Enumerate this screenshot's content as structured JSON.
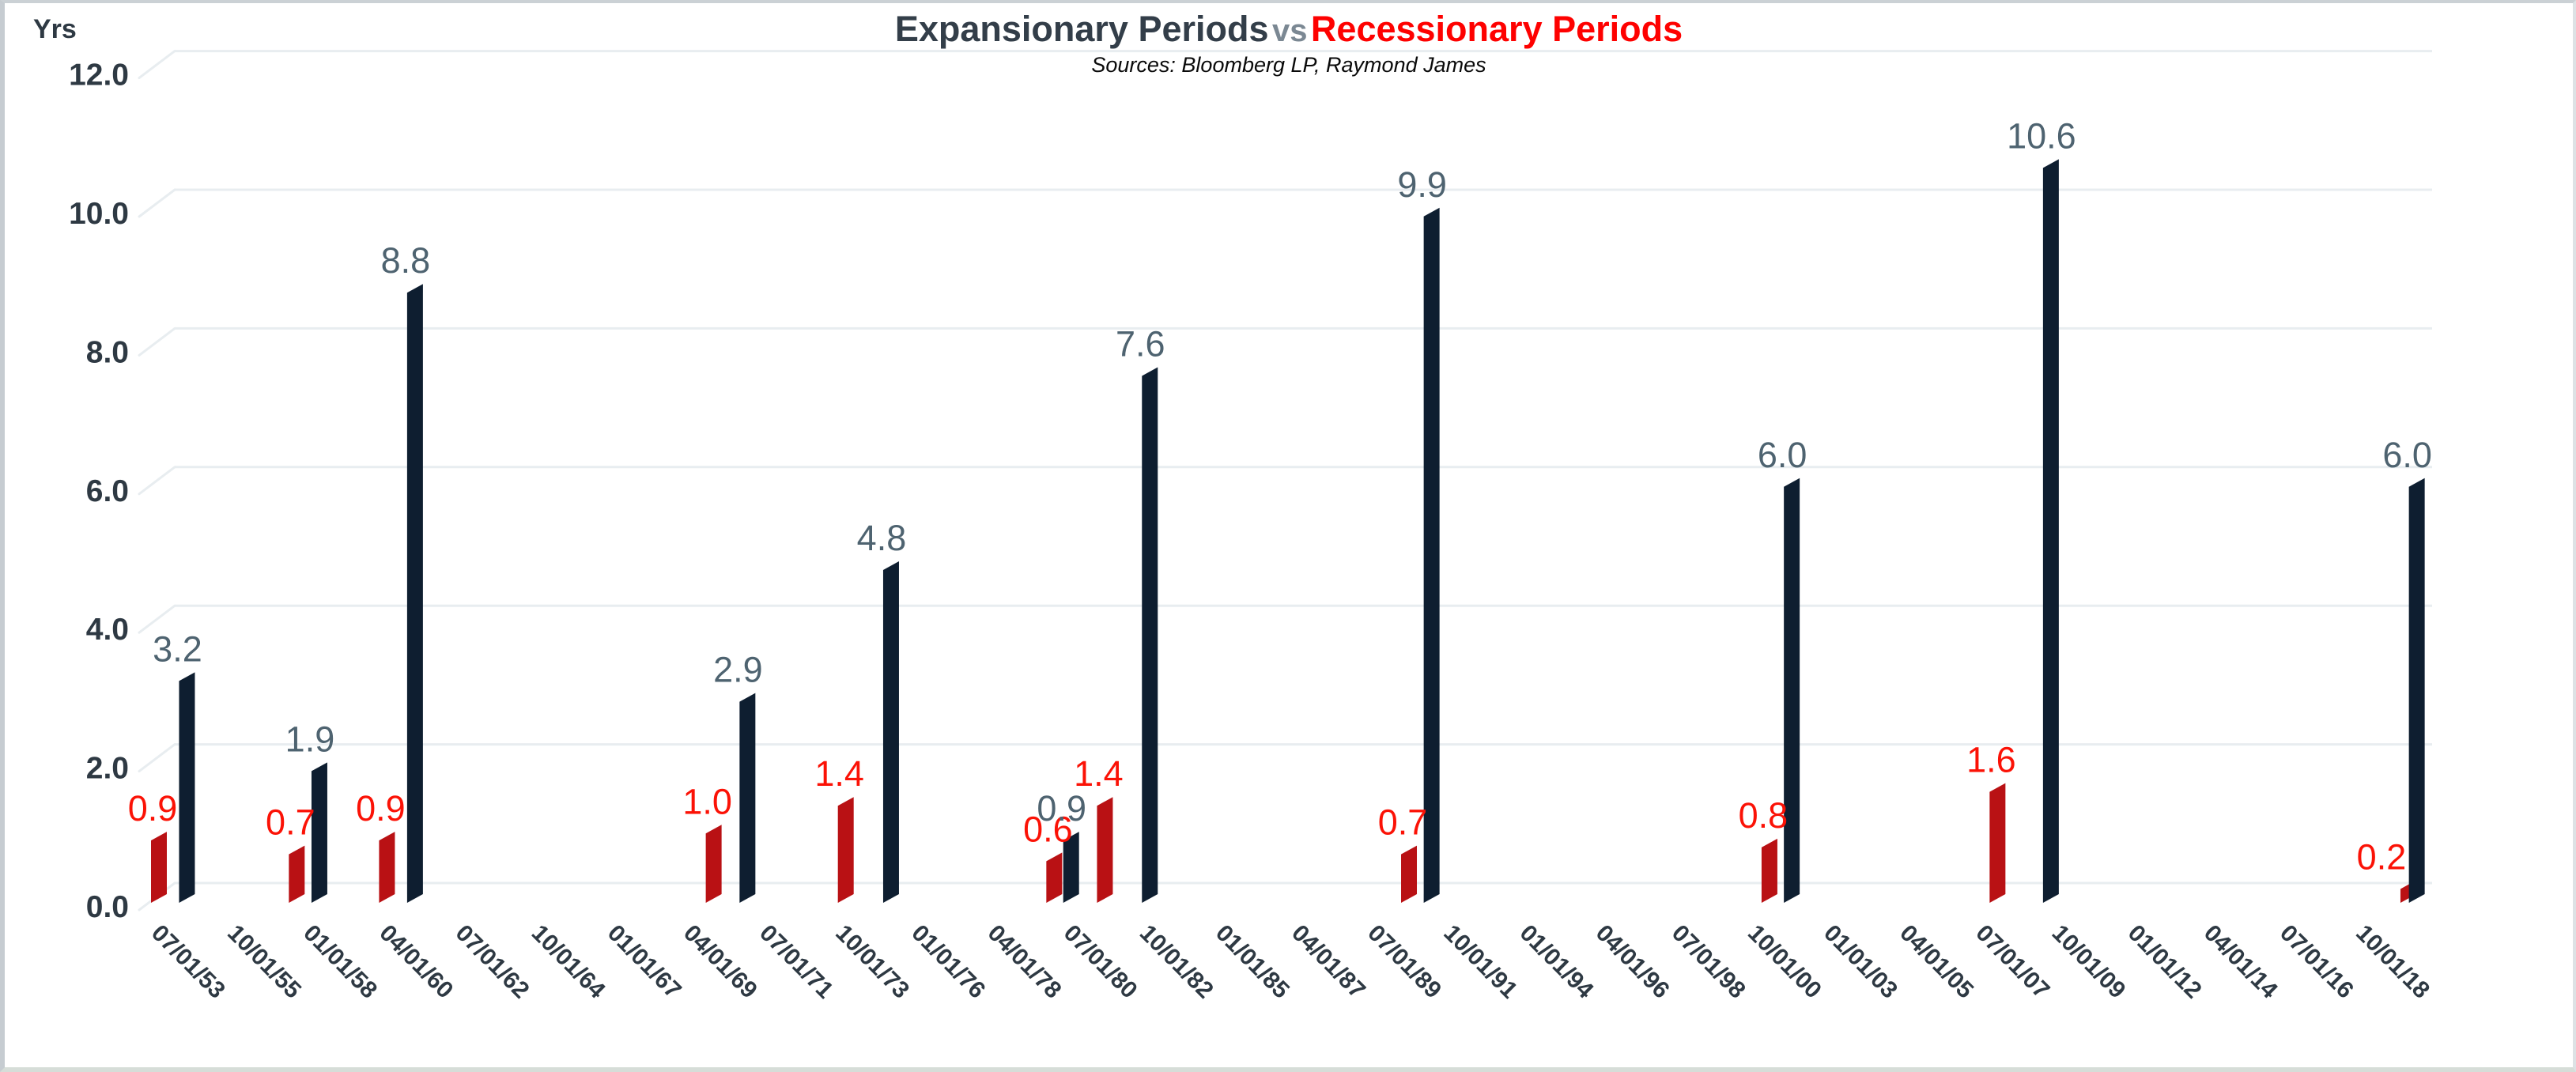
{
  "page": {
    "background": "#ffffff",
    "border_color": "#c9cfd4"
  },
  "header": {
    "title_left": "Expansionary Periods",
    "title_sep": "vs",
    "title_right": "Recessionary Periods",
    "subtitle": "Sources: Bloomberg LP, Raymond James",
    "title_left_color": "#333e49",
    "title_sep_color": "#7b8893",
    "title_right_color": "#fe0100"
  },
  "chart_data": {
    "type": "bar",
    "title": "Expansionary Periods vs Recessionary Periods",
    "subtitle": "Sources: Bloomberg LP, Raymond James",
    "ylabel": "Yrs",
    "ylim": [
      0,
      12
    ],
    "ytick_step": 2,
    "ytick_labels": [
      "0.0",
      "2.0",
      "4.0",
      "6.0",
      "8.0",
      "10.0",
      "12.0"
    ],
    "grid": true,
    "legend": "none",
    "style_3d_skew": true,
    "gridline_color": "#e8edf0",
    "axis_text_color": "#2e3943",
    "x_axis": {
      "type": "time",
      "tick_labels": [
        "07/01/53",
        "10/01/55",
        "01/01/58",
        "04/01/60",
        "07/01/62",
        "10/01/64",
        "01/01/67",
        "04/01/69",
        "07/01/71",
        "10/01/73",
        "01/01/76",
        "04/01/78",
        "07/01/80",
        "10/01/82",
        "01/01/85",
        "04/01/87",
        "07/01/89",
        "10/01/91",
        "01/01/94",
        "04/01/96",
        "07/01/98",
        "10/01/00",
        "01/01/03",
        "04/01/05",
        "07/01/07",
        "10/01/09",
        "01/01/12",
        "04/01/14",
        "07/01/16",
        "10/01/18"
      ]
    },
    "series": [
      {
        "name": "Recessionary Periods",
        "role": "recession",
        "bar_color": "#b91114",
        "label_color": "#fb1206",
        "points": [
          {
            "x_year": 1953.5,
            "value": 0.9
          },
          {
            "x_year": 1957.58,
            "value": 0.7
          },
          {
            "x_year": 1960.25,
            "value": 0.9
          },
          {
            "x_year": 1969.92,
            "value": 1.0
          },
          {
            "x_year": 1973.83,
            "value": 1.4
          },
          {
            "x_year": 1980.0,
            "value": 0.6
          },
          {
            "x_year": 1981.5,
            "value": 1.4
          },
          {
            "x_year": 1990.5,
            "value": 0.7
          },
          {
            "x_year": 2001.17,
            "value": 0.8
          },
          {
            "x_year": 2007.92,
            "value": 1.6
          },
          {
            "x_year": 2020.08,
            "value": 0.2,
            "label_dx": -26
          }
        ]
      },
      {
        "name": "Expansionary Periods",
        "role": "expansion",
        "bar_color": "#0e1e30",
        "label_color": "#4e6370",
        "points": [
          {
            "x_year": 1954.33,
            "value": 3.2
          },
          {
            "x_year": 1958.25,
            "value": 1.9
          },
          {
            "x_year": 1961.08,
            "value": 8.8
          },
          {
            "x_year": 1970.92,
            "value": 2.9
          },
          {
            "x_year": 1975.17,
            "value": 4.8
          },
          {
            "x_year": 1980.5,
            "value": 0.9
          },
          {
            "x_year": 1982.83,
            "value": 7.6
          },
          {
            "x_year": 1991.17,
            "value": 9.9
          },
          {
            "x_year": 2001.83,
            "value": 6.0
          },
          {
            "x_year": 2009.5,
            "value": 10.6
          },
          {
            "x_year": 2020.33,
            "value": 6.0
          }
        ]
      }
    ]
  }
}
